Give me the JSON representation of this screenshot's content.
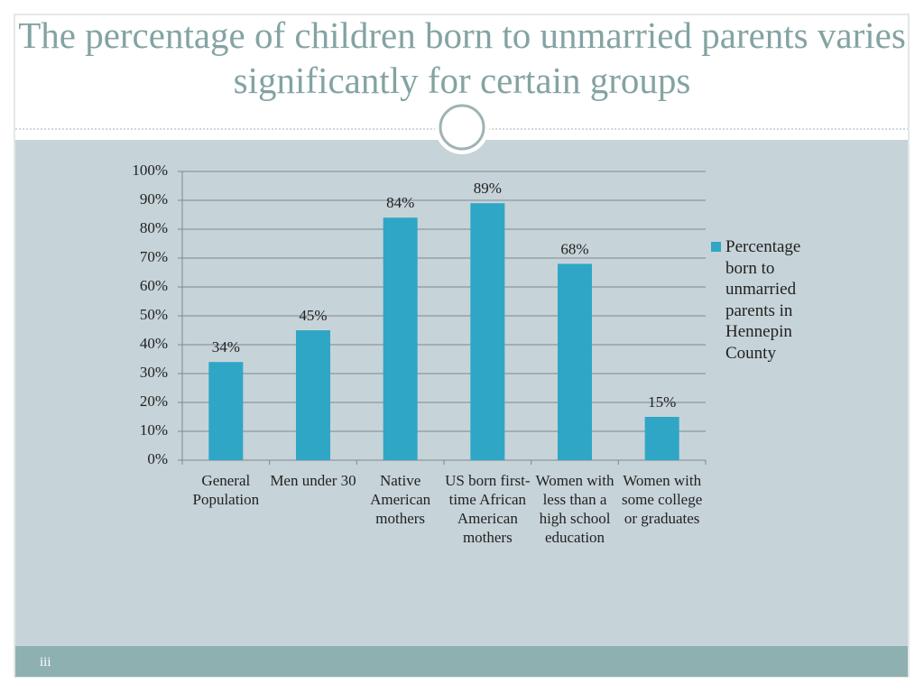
{
  "title": "The percentage of children born to unmarried parents varies significantly for certain groups",
  "footer": "iii",
  "chart_data": {
    "type": "bar",
    "categories": [
      "General Population",
      "Men under 30",
      "Native American mothers",
      "US born first-time African American mothers",
      "Women with less than a high school education",
      "Women with some college or graduates"
    ],
    "series": [
      {
        "name": "Percentage born to unmarried parents in Hennepin County",
        "color": "#2fa6c6",
        "values": [
          34,
          45,
          84,
          89,
          68,
          15
        ],
        "value_labels": [
          "34%",
          "45%",
          "84%",
          "89%",
          "68%",
          "15%"
        ]
      }
    ],
    "ylim": [
      0,
      100
    ],
    "yticks": [
      {
        "value": 0,
        "label": "0%"
      },
      {
        "value": 10,
        "label": "10%"
      },
      {
        "value": 20,
        "label": "20%"
      },
      {
        "value": 30,
        "label": "30%"
      },
      {
        "value": 40,
        "label": "40%"
      },
      {
        "value": 50,
        "label": "50%"
      },
      {
        "value": 60,
        "label": "60%"
      },
      {
        "value": 70,
        "label": "70%"
      },
      {
        "value": 80,
        "label": "80%"
      },
      {
        "value": 90,
        "label": "90%"
      },
      {
        "value": 100,
        "label": "100%"
      }
    ],
    "grid": true,
    "legend": "right"
  }
}
